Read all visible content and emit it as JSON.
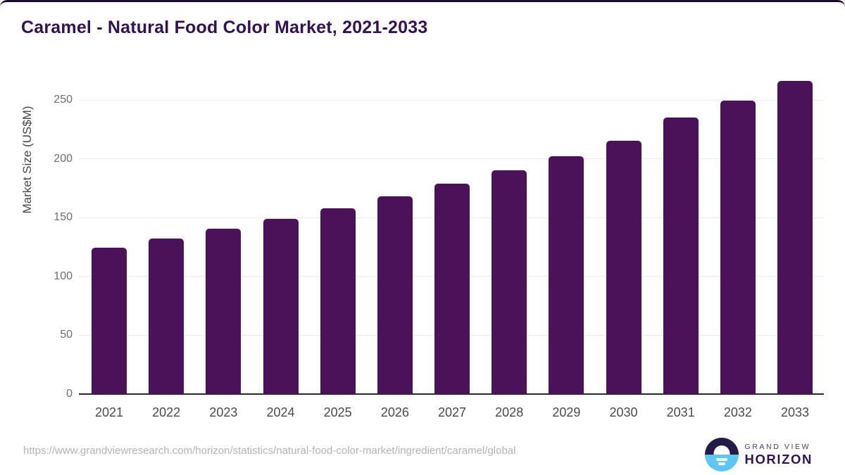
{
  "page": {
    "source_url": "https://www.grandviewresearch.com/horizon/statistics/natural-food-color-market/ingredient/caramel/global"
  },
  "chart_data": {
    "type": "bar",
    "title": "Caramel - Natural Food Color Market, 2021-2033",
    "categories": [
      "2021",
      "2022",
      "2023",
      "2024",
      "2025",
      "2026",
      "2027",
      "2028",
      "2029",
      "2030",
      "2031",
      "2032",
      "2033"
    ],
    "values": [
      124.6,
      132.3,
      140.4,
      149.0,
      158.0,
      167.9,
      178.8,
      190.2,
      202.4,
      215.5,
      234.8,
      249.6,
      265.9
    ],
    "xlabel": "",
    "ylabel": "Market Size (US$M)",
    "ylim": [
      0,
      267
    ],
    "yticks": [
      0,
      50,
      100,
      150,
      200,
      250
    ],
    "grid": true,
    "legend_position": "none",
    "bar_color": "#4a1259",
    "axis_line_color": "#2b2b2b",
    "gridline_color": "#ebebeb"
  },
  "branding": {
    "line1": "GRAND VIEW",
    "line2": "HORIZON",
    "icon": "sunset-circle-icon",
    "colors": {
      "circle_top_navy": "#241b47",
      "circle_bottom_blue": "#5ec6f2",
      "wordmark_purple": "#2e1650"
    }
  },
  "colors": {
    "title_purple": "#321253",
    "top_border": "#1a0d2e",
    "tick_label_gray": "#6f6f6f",
    "x_label_gray": "#4b4b4b",
    "source_gray": "#b3b3b3",
    "background": "#ffffff"
  }
}
